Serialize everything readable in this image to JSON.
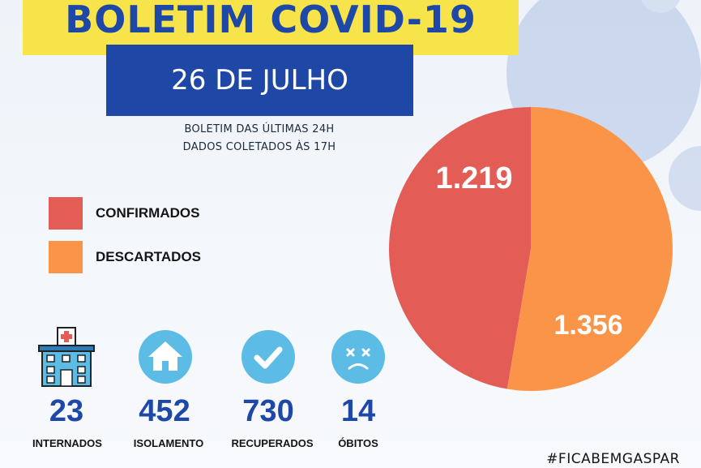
{
  "title": "BOLETIM COVID-19",
  "date": "26 DE JULHO",
  "subtitle_line1": "BOLETIM DAS ÚLTIMAS 24H",
  "subtitle_line2": "DADOS COLETADOS ÀS  17H",
  "colors": {
    "confirmados": "#e35c55",
    "descartados": "#f99448",
    "title_bg": "#f7e34a",
    "date_bg": "#1f48a6",
    "accent": "#1e48a8",
    "icon_bg": "#5cbce6"
  },
  "chart_data": {
    "type": "pie",
    "categories": [
      "CONFIRMADOS",
      "DESCARTADOS"
    ],
    "values": [
      1219,
      1356
    ],
    "value_labels": [
      "1.219",
      "1.356"
    ],
    "legend": "left"
  },
  "stats": [
    {
      "value": "23",
      "label": "INTERNADOS",
      "icon": "hospital-icon"
    },
    {
      "value": "452",
      "label": "ISOLAMENTO",
      "icon": "house-icon"
    },
    {
      "value": "730",
      "label": "RECUPERADOS",
      "icon": "check-icon"
    },
    {
      "value": "14",
      "label": "ÓBITOS",
      "icon": "sad-face-icon"
    }
  ],
  "hashtag": "#FICABEMGASPAR"
}
